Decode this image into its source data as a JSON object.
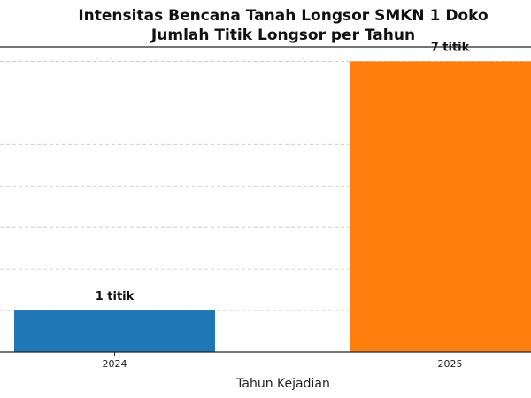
{
  "chart_data": {
    "type": "bar",
    "title": "Intensitas Bencana Tanah Longsor SMKN 1 Doko",
    "subtitle": "Jumlah Titik Longsor per Tahun",
    "xlabel": "Tahun Kejadian",
    "ylabel": "",
    "categories": [
      "2024",
      "2025"
    ],
    "values": [
      1,
      7
    ],
    "data_labels": [
      "1 titik",
      "7 titik"
    ],
    "colors": [
      "#1f77b4",
      "#ff7f0e"
    ],
    "ylim": [
      0,
      7.35
    ],
    "grid": "y, dashed",
    "legend": "none"
  }
}
